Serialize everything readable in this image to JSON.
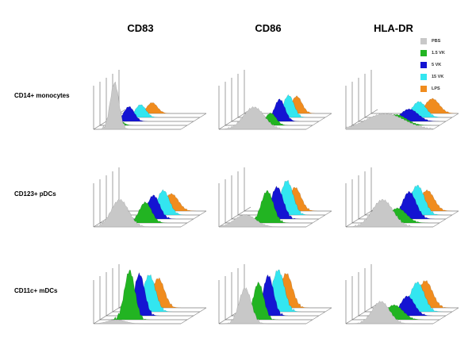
{
  "chart_data": {
    "type": "area",
    "columns": [
      "CD83",
      "CD86",
      "HLA-DR"
    ],
    "rows": [
      "CD14+ monocytes",
      "CD123+ pDCs",
      "CD11c+ mDCs"
    ],
    "legend": [
      {
        "name": "PBS",
        "color": "#c8c8c8"
      },
      {
        "name": "1.5 VK",
        "color": "#22b422"
      },
      {
        "name": "5 VK",
        "color": "#1414d2"
      },
      {
        "name": "15 VK",
        "color": "#33e6f0"
      },
      {
        "name": "LPS",
        "color": "#f08c1e"
      }
    ],
    "panels": [
      [
        {
          "series": [
            {
              "center": 0.24,
              "width": 0.05,
              "height": 0.95
            },
            {
              "center": 0.22,
              "width": 0.05,
              "height": 0.1
            },
            {
              "center": 0.26,
              "width": 0.06,
              "height": 0.3
            },
            {
              "center": 0.32,
              "width": 0.06,
              "height": 0.26
            },
            {
              "center": 0.38,
              "width": 0.06,
              "height": 0.22
            }
          ]
        },
        {
          "series": [
            {
              "center": 0.4,
              "width": 0.12,
              "height": 0.45
            },
            {
              "center": 0.52,
              "width": 0.06,
              "height": 0.25
            },
            {
              "center": 0.55,
              "width": 0.06,
              "height": 0.45
            },
            {
              "center": 0.58,
              "width": 0.06,
              "height": 0.45
            },
            {
              "center": 0.6,
              "width": 0.06,
              "height": 0.35
            }
          ]
        },
        {
          "series": [
            {
              "center": 0.45,
              "width": 0.22,
              "height": 0.32
            },
            {
              "center": 0.5,
              "width": 0.12,
              "height": 0.22
            },
            {
              "center": 0.58,
              "width": 0.1,
              "height": 0.25
            },
            {
              "center": 0.62,
              "width": 0.08,
              "height": 0.32
            },
            {
              "center": 0.7,
              "width": 0.08,
              "height": 0.3
            }
          ]
        }
      ],
      [
        {
          "series": [
            {
              "center": 0.3,
              "width": 0.1,
              "height": 0.55
            },
            {
              "center": 0.52,
              "width": 0.07,
              "height": 0.42
            },
            {
              "center": 0.54,
              "width": 0.07,
              "height": 0.48
            },
            {
              "center": 0.58,
              "width": 0.07,
              "height": 0.5
            },
            {
              "center": 0.6,
              "width": 0.08,
              "height": 0.35
            }
          ]
        },
        {
          "series": [
            {
              "center": 0.3,
              "width": 0.12,
              "height": 0.25
            },
            {
              "center": 0.48,
              "width": 0.07,
              "height": 0.65
            },
            {
              "center": 0.52,
              "width": 0.07,
              "height": 0.65
            },
            {
              "center": 0.56,
              "width": 0.07,
              "height": 0.7
            },
            {
              "center": 0.58,
              "width": 0.07,
              "height": 0.48
            }
          ]
        },
        {
          "series": [
            {
              "center": 0.42,
              "width": 0.12,
              "height": 0.55
            },
            {
              "center": 0.52,
              "width": 0.1,
              "height": 0.3
            },
            {
              "center": 0.58,
              "width": 0.08,
              "height": 0.55
            },
            {
              "center": 0.6,
              "width": 0.08,
              "height": 0.6
            },
            {
              "center": 0.64,
              "width": 0.08,
              "height": 0.42
            }
          ]
        }
      ],
      [
        {
          "series": [
            {
              "center": 0.26,
              "width": 0.1,
              "height": 0.08
            },
            {
              "center": 0.34,
              "width": 0.06,
              "height": 1.0
            },
            {
              "center": 0.38,
              "width": 0.06,
              "height": 0.85
            },
            {
              "center": 0.42,
              "width": 0.07,
              "height": 0.75
            },
            {
              "center": 0.45,
              "width": 0.07,
              "height": 0.6
            }
          ]
        },
        {
          "series": [
            {
              "center": 0.3,
              "width": 0.07,
              "height": 0.72
            },
            {
              "center": 0.38,
              "width": 0.06,
              "height": 0.75
            },
            {
              "center": 0.42,
              "width": 0.06,
              "height": 0.82
            },
            {
              "center": 0.46,
              "width": 0.07,
              "height": 0.85
            },
            {
              "center": 0.48,
              "width": 0.07,
              "height": 0.7
            }
          ]
        },
        {
          "series": [
            {
              "center": 0.4,
              "width": 0.1,
              "height": 0.45
            },
            {
              "center": 0.48,
              "width": 0.1,
              "height": 0.3
            },
            {
              "center": 0.56,
              "width": 0.08,
              "height": 0.4
            },
            {
              "center": 0.6,
              "width": 0.08,
              "height": 0.6
            },
            {
              "center": 0.62,
              "width": 0.08,
              "height": 0.55
            }
          ]
        }
      ]
    ]
  }
}
